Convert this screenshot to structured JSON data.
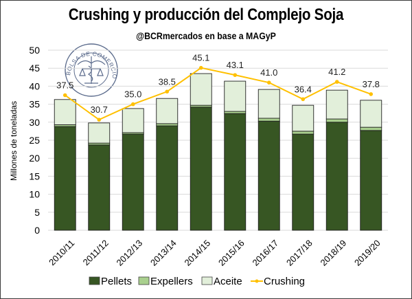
{
  "title": "Crushing y producción del Complejo Soja",
  "subtitle": "@BCRmercados en base a MAGyP",
  "logo": {
    "name": "bolsa-de-comercio-de-rosario-seal",
    "text": "BOLSA DE COMERCIO DE ROSARIO",
    "color": "#5b6b8c"
  },
  "colors": {
    "pellets": "#375623",
    "expellers": "#a9d08e",
    "aceite": "#e2efda",
    "crushing": "#ffc000",
    "grid": "#d9d9d9"
  },
  "chart_data": {
    "type": "bar",
    "subtype": "stacked-bar-with-line",
    "title": "Crushing y producción del Complejo Soja",
    "subtitle": "@BCRmercados en base a MAGyP",
    "xlabel": "",
    "ylabel": "Millones de toneladas",
    "ylim": [
      0,
      50
    ],
    "yticks": [
      0,
      5,
      10,
      15,
      20,
      25,
      30,
      35,
      40,
      45,
      50
    ],
    "grid": true,
    "legend_position": "bottom",
    "categories": [
      "2010/11",
      "2011/12",
      "2012/13",
      "2013/14",
      "2014/15",
      "2015/16",
      "2016/17",
      "2017/18",
      "2018/19",
      "2019/20"
    ],
    "series": [
      {
        "name": "Pellets",
        "type": "bar",
        "stack": "production",
        "values": [
          28.8,
          23.7,
          26.7,
          29.0,
          34.2,
          32.4,
          30.3,
          26.7,
          30.0,
          27.7
        ]
      },
      {
        "name": "Expellers",
        "type": "bar",
        "stack": "production",
        "values": [
          0.5,
          0.5,
          0.4,
          0.6,
          0.5,
          0.6,
          0.8,
          0.8,
          0.9,
          0.9
        ]
      },
      {
        "name": "Aceite",
        "type": "bar",
        "stack": "production",
        "values": [
          7.0,
          5.6,
          6.7,
          7.0,
          8.8,
          8.4,
          8.0,
          7.2,
          8.0,
          7.5
        ]
      },
      {
        "name": "Crushing",
        "type": "line",
        "values": [
          37.5,
          30.7,
          35.0,
          38.5,
          45.1,
          43.1,
          41.0,
          36.4,
          41.2,
          37.8
        ],
        "labels": [
          "37.5",
          "30.7",
          "35.0",
          "38.5",
          "45.1",
          "43.1",
          "41.0",
          "36.4",
          "41.2",
          "37.8"
        ]
      }
    ],
    "legend": [
      "Pellets",
      "Expellers",
      "Aceite",
      "Crushing"
    ]
  }
}
